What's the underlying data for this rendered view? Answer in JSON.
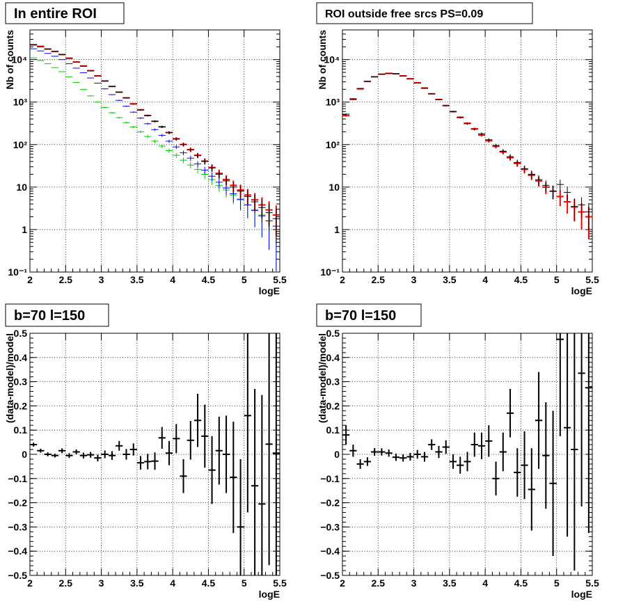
{
  "chart_data": [
    {
      "type": "scatter",
      "title": "In entire ROI",
      "xlabel": "logE",
      "ylabel": "Nb of counts",
      "xlim": [
        2,
        5.5
      ],
      "ylim": [
        0.1,
        50000
      ],
      "yscale": "log",
      "grid": true,
      "x_ticks": [
        "2",
        "2.5",
        "3",
        "3.5",
        "4",
        "4.5",
        "5",
        "5.5"
      ],
      "y_ticks": [
        "10⁻¹",
        "1",
        "10",
        "10²",
        "10³",
        "10⁴"
      ],
      "x": [
        2.05,
        2.15,
        2.25,
        2.35,
        2.45,
        2.55,
        2.65,
        2.75,
        2.85,
        2.95,
        3.05,
        3.15,
        3.25,
        3.35,
        3.45,
        3.55,
        3.65,
        3.75,
        3.85,
        3.95,
        4.05,
        4.15,
        4.25,
        4.35,
        4.45,
        4.55,
        4.65,
        4.75,
        4.85,
        4.95,
        5.05,
        5.15,
        5.25,
        5.35,
        5.45
      ],
      "series": [
        {
          "color": "#000000",
          "values": [
            22000,
            20000,
            17500,
            15500,
            13000,
            10700,
            8700,
            7000,
            5400,
            4100,
            3100,
            2300,
            1700,
            1250,
            900,
            650,
            480,
            350,
            260,
            190,
            135,
            100,
            75,
            55,
            40,
            28,
            20,
            14,
            10,
            8,
            6,
            4.5,
            3.3,
            2.5,
            1.8
          ]
        },
        {
          "color": "#ff0000",
          "values": [
            22500,
            20500,
            17800,
            15600,
            13200,
            10800,
            8800,
            7100,
            5500,
            4150,
            3150,
            2350,
            1720,
            1260,
            910,
            660,
            485,
            355,
            262,
            192,
            137,
            101,
            76,
            56,
            41,
            29,
            21,
            15,
            11,
            8.5,
            6.5,
            5,
            3.8,
            2.9,
            2.2
          ]
        },
        {
          "color": "#0000ff",
          "values": [
            18000,
            16000,
            14000,
            12000,
            10000,
            8000,
            6300,
            4900,
            3700,
            2800,
            2050,
            1500,
            1100,
            800,
            580,
            420,
            310,
            225,
            165,
            120,
            88,
            64,
            48,
            35,
            25,
            18,
            13,
            9.5,
            7,
            5.2,
            3.8,
            2.8,
            2.1,
            1.6,
            1.2
          ]
        },
        {
          "color": "#00cc00",
          "values": [
            11000,
            9500,
            8000,
            6500,
            5200,
            3900,
            2900,
            2000,
            1400,
            1000,
            750,
            560,
            430,
            330,
            260,
            200,
            155,
            120,
            92,
            72,
            56,
            43,
            33,
            26,
            20,
            15,
            11,
            8.5,
            6.5,
            5,
            3.8,
            2.9,
            2.2,
            1.6,
            1.2
          ]
        }
      ]
    },
    {
      "type": "scatter",
      "title": "ROI outside free srcs PS=0.09",
      "xlabel": "logE",
      "ylabel": "Nb of counts",
      "xlim": [
        2,
        5.5
      ],
      "ylim": [
        0.1,
        50000
      ],
      "yscale": "log",
      "grid": true,
      "x_ticks": [
        "2",
        "2.5",
        "3",
        "3.5",
        "4",
        "4.5",
        "5",
        "5.5"
      ],
      "y_ticks": [
        "10⁻¹",
        "1",
        "10",
        "10²",
        "10³",
        "10⁴"
      ],
      "x": [
        2.05,
        2.15,
        2.25,
        2.35,
        2.45,
        2.55,
        2.65,
        2.75,
        2.85,
        2.95,
        3.05,
        3.15,
        3.25,
        3.35,
        3.45,
        3.55,
        3.65,
        3.75,
        3.85,
        3.95,
        4.05,
        4.15,
        4.25,
        4.35,
        4.45,
        4.55,
        4.65,
        4.75,
        4.85,
        4.95,
        5.05,
        5.15,
        5.25,
        5.35,
        5.45
      ],
      "series": [
        {
          "color": "#000000",
          "values": [
            520,
            1200,
            2100,
            3100,
            3900,
            4500,
            4700,
            4600,
            4100,
            3500,
            2800,
            2100,
            1560,
            1140,
            820,
            590,
            430,
            310,
            230,
            180,
            130,
            95,
            70,
            52,
            38,
            27,
            20,
            15,
            11,
            8,
            11.5,
            7.5,
            3.5,
            3.8,
            2.6
          ]
        },
        {
          "color": "#ff0000",
          "values": [
            480,
            1150,
            2050,
            3050,
            3950,
            4550,
            4750,
            4650,
            4150,
            3550,
            2850,
            2150,
            1570,
            1150,
            830,
            600,
            440,
            318,
            235,
            168,
            123,
            91,
            67,
            49,
            36,
            26,
            19,
            14,
            10,
            8,
            6,
            4.5,
            3.4,
            2.6,
            2
          ]
        }
      ]
    },
    {
      "type": "scatter",
      "title": "b=70 l=150",
      "xlabel": "logE",
      "ylabel": "(data-model)/model",
      "xlim": [
        2,
        5.5
      ],
      "ylim": [
        -0.5,
        0.5
      ],
      "grid": true,
      "x_ticks": [
        "2",
        "2.5",
        "3",
        "3.5",
        "4",
        "4.5",
        "5",
        "5.5"
      ],
      "y_ticks": [
        "−0.5",
        "−0.4",
        "−0.3",
        "−0.2",
        "−0.1",
        "0",
        "0.1",
        "0.2",
        "0.3",
        "0.4",
        "0.5"
      ],
      "x": [
        2.05,
        2.15,
        2.25,
        2.35,
        2.45,
        2.55,
        2.65,
        2.75,
        2.85,
        2.95,
        3.05,
        3.15,
        3.25,
        3.35,
        3.45,
        3.55,
        3.65,
        3.75,
        3.85,
        3.95,
        4.05,
        4.15,
        4.25,
        4.35,
        4.45,
        4.55,
        4.65,
        4.75,
        4.85,
        4.95,
        5.05,
        5.15,
        5.25,
        5.35,
        5.45
      ],
      "values": [
        0.04,
        0.015,
        0.0,
        -0.005,
        0.015,
        -0.005,
        0.01,
        -0.005,
        -0.002,
        -0.015,
        0.0,
        -0.005,
        0.035,
        0.0,
        0.02,
        -0.035,
        -0.03,
        -0.028,
        0.068,
        0.005,
        0.065,
        -0.09,
        0.058,
        0.14,
        0.075,
        -0.065,
        0.015,
        0.0,
        -0.095,
        -0.3,
        0.16,
        -0.13,
        -0.205,
        0.042,
        0.005
      ],
      "errors": [
        0.008,
        0.008,
        0.008,
        0.008,
        0.01,
        0.01,
        0.01,
        0.012,
        0.012,
        0.014,
        0.016,
        0.018,
        0.02,
        0.022,
        0.025,
        0.028,
        0.032,
        0.036,
        0.045,
        0.05,
        0.06,
        0.07,
        0.08,
        0.11,
        0.13,
        0.14,
        0.14,
        0.16,
        0.23,
        0.28,
        0.4,
        0.4,
        0.45,
        0.5,
        0.55
      ]
    },
    {
      "type": "scatter",
      "title": "b=70 l=150",
      "xlabel": "logE",
      "ylabel": "(data-model)/model",
      "xlim": [
        2,
        5.5
      ],
      "ylim": [
        -0.5,
        0.5
      ],
      "grid": true,
      "x_ticks": [
        "2",
        "2.5",
        "3",
        "3.5",
        "4",
        "4.5",
        "5",
        "5.5"
      ],
      "y_ticks": [
        "−0.5",
        "−0.4",
        "−0.3",
        "−0.2",
        "−0.1",
        "0",
        "0.1",
        "0.2",
        "0.3",
        "0.4",
        "0.5"
      ],
      "x": [
        2.05,
        2.15,
        2.25,
        2.35,
        2.45,
        2.55,
        2.65,
        2.75,
        2.85,
        2.95,
        3.05,
        3.15,
        3.25,
        3.35,
        3.45,
        3.55,
        3.65,
        3.75,
        3.85,
        3.95,
        4.05,
        4.15,
        4.25,
        4.35,
        4.45,
        4.55,
        4.65,
        4.75,
        4.85,
        4.95,
        5.05,
        5.15,
        5.25,
        5.35,
        5.45
      ],
      "values": [
        0.08,
        0.015,
        -0.04,
        -0.03,
        0.01,
        0.01,
        0.005,
        -0.012,
        -0.015,
        -0.01,
        0.0,
        -0.01,
        0.04,
        0.01,
        0.03,
        -0.03,
        -0.045,
        -0.03,
        0.04,
        0.035,
        0.055,
        -0.1,
        0.01,
        0.17,
        -0.075,
        -0.045,
        -0.145,
        0.14,
        -0.005,
        -0.12,
        0.475,
        0.11,
        0.02,
        0.335,
        0.275
      ],
      "errors": [
        0.04,
        0.025,
        0.02,
        0.018,
        0.016,
        0.015,
        0.015,
        0.015,
        0.015,
        0.016,
        0.018,
        0.02,
        0.022,
        0.025,
        0.028,
        0.03,
        0.035,
        0.04,
        0.05,
        0.055,
        0.065,
        0.07,
        0.08,
        0.1,
        0.1,
        0.14,
        0.17,
        0.2,
        0.22,
        0.3,
        0.4,
        0.45,
        0.5,
        0.55,
        0.6
      ]
    }
  ]
}
